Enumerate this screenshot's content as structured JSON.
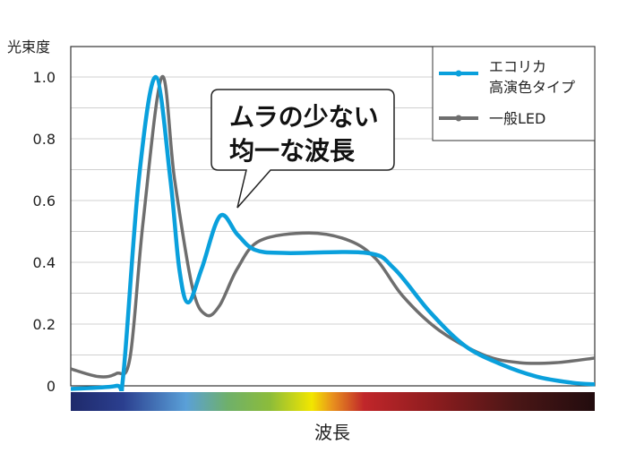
{
  "chart_data": {
    "type": "line",
    "title": "",
    "ylabel": "光束度",
    "xlabel": "波長",
    "ylim": [
      0,
      1.1
    ],
    "xlim": [
      0,
      100
    ],
    "grid": true,
    "yticks": [
      "0",
      "0.2",
      "0.4",
      "0.6",
      "0.8",
      "1.0"
    ],
    "ytick_values": [
      0,
      0.2,
      0.4,
      0.6,
      0.8,
      1.0
    ],
    "legend_position": "top-right",
    "series": [
      {
        "name_lines": [
          "エコリカ",
          "高演色タイプ"
        ],
        "color": "#0aa0dc",
        "x": [
          0,
          8.7,
          10,
          13,
          16.2,
          19,
          20.7,
          22.4,
          25,
          28.5,
          31.8,
          35.2,
          41.2,
          56.6,
          61.7,
          68.5,
          75.2,
          82.1,
          88.9,
          95.7,
          100
        ],
        "y": [
          -0.01,
          0,
          0.03,
          0.67,
          1.0,
          0.67,
          0.38,
          0.27,
          0.38,
          0.55,
          0.49,
          0.44,
          0.43,
          0.43,
          0.38,
          0.24,
          0.13,
          0.07,
          0.03,
          0.01,
          0.005
        ]
      },
      {
        "name": "一般LED",
        "color": "#6e6e6e",
        "x": [
          0,
          5.3,
          8.7,
          11.3,
          13.8,
          17.4,
          19.8,
          23.2,
          25.8,
          28.4,
          31.8,
          36.1,
          45.5,
          53.2,
          58.3,
          63.4,
          70.3,
          78.8,
          85.6,
          92.5,
          100
        ],
        "y": [
          0.055,
          0.03,
          0.04,
          0.09,
          0.53,
          1.0,
          0.67,
          0.32,
          0.23,
          0.26,
          0.38,
          0.47,
          0.495,
          0.47,
          0.41,
          0.29,
          0.18,
          0.1,
          0.075,
          0.075,
          0.09
        ]
      }
    ],
    "annotation": [
      "ムラの少ない",
      "均一な波長"
    ],
    "spectrum_colors": [
      "#1f2a6b",
      "#2b3f8f",
      "#5aa0d8",
      "#6fb06a",
      "#8cbc3a",
      "#f2e600",
      "#e8901e",
      "#c0262a",
      "#8a1c1e",
      "#4a1616",
      "#220c0e"
    ]
  }
}
